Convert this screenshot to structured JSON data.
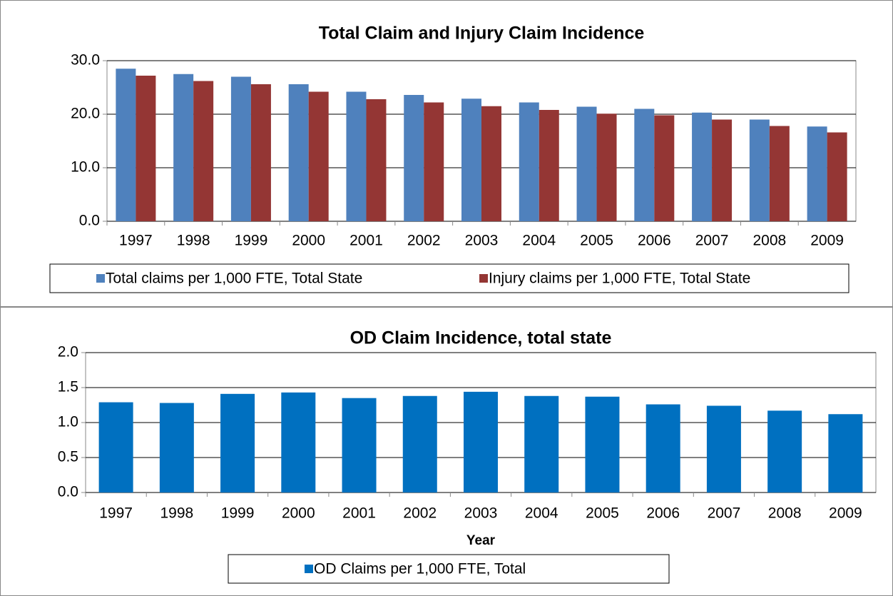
{
  "chart_data": [
    {
      "type": "bar",
      "title": "Total Claim and Injury Claim Incidence",
      "categories": [
        "1997",
        "1998",
        "1999",
        "2000",
        "2001",
        "2002",
        "2003",
        "2004",
        "2005",
        "2006",
        "2007",
        "2008",
        "2009"
      ],
      "series": [
        {
          "name": "Total claims per 1,000 FTE, Total State",
          "color": "#4f81bd",
          "values": [
            28.5,
            27.5,
            27.0,
            25.6,
            24.2,
            23.6,
            22.9,
            22.2,
            21.4,
            21.0,
            20.3,
            19.0,
            17.7
          ]
        },
        {
          "name": "Injury claims per 1,000 FTE, Total State",
          "color": "#943634",
          "values": [
            27.2,
            26.2,
            25.6,
            24.2,
            22.8,
            22.2,
            21.5,
            20.8,
            20.1,
            19.8,
            19.0,
            17.8,
            16.6
          ]
        }
      ],
      "ylim": [
        0,
        30
      ],
      "yticks": [
        {
          "value": 0,
          "label": "0.0"
        },
        {
          "value": 10,
          "label": "10.0"
        },
        {
          "value": 20,
          "label": "20.0"
        },
        {
          "value": 30,
          "label": "30.0"
        }
      ],
      "grid": true,
      "legend": "bottom"
    },
    {
      "type": "bar",
      "title": "OD Claim Incidence, total state",
      "x_label": "Year",
      "categories": [
        "1997",
        "1998",
        "1999",
        "2000",
        "2001",
        "2002",
        "2003",
        "2004",
        "2005",
        "2006",
        "2007",
        "2008",
        "2009"
      ],
      "series": [
        {
          "name": "OD Claims per 1,000 FTE, Total",
          "color": "#0070c0",
          "values": [
            1.29,
            1.28,
            1.41,
            1.43,
            1.35,
            1.38,
            1.44,
            1.38,
            1.37,
            1.26,
            1.24,
            1.17,
            1.12
          ]
        }
      ],
      "ylim": [
        0,
        2
      ],
      "yticks": [
        {
          "value": 0,
          "label": "0.0"
        },
        {
          "value": 0.5,
          "label": "0.5"
        },
        {
          "value": 1,
          "label": "1.0"
        },
        {
          "value": 1.5,
          "label": "1.5"
        },
        {
          "value": 2,
          "label": "2.0"
        }
      ],
      "grid": true,
      "legend": "bottom"
    }
  ]
}
